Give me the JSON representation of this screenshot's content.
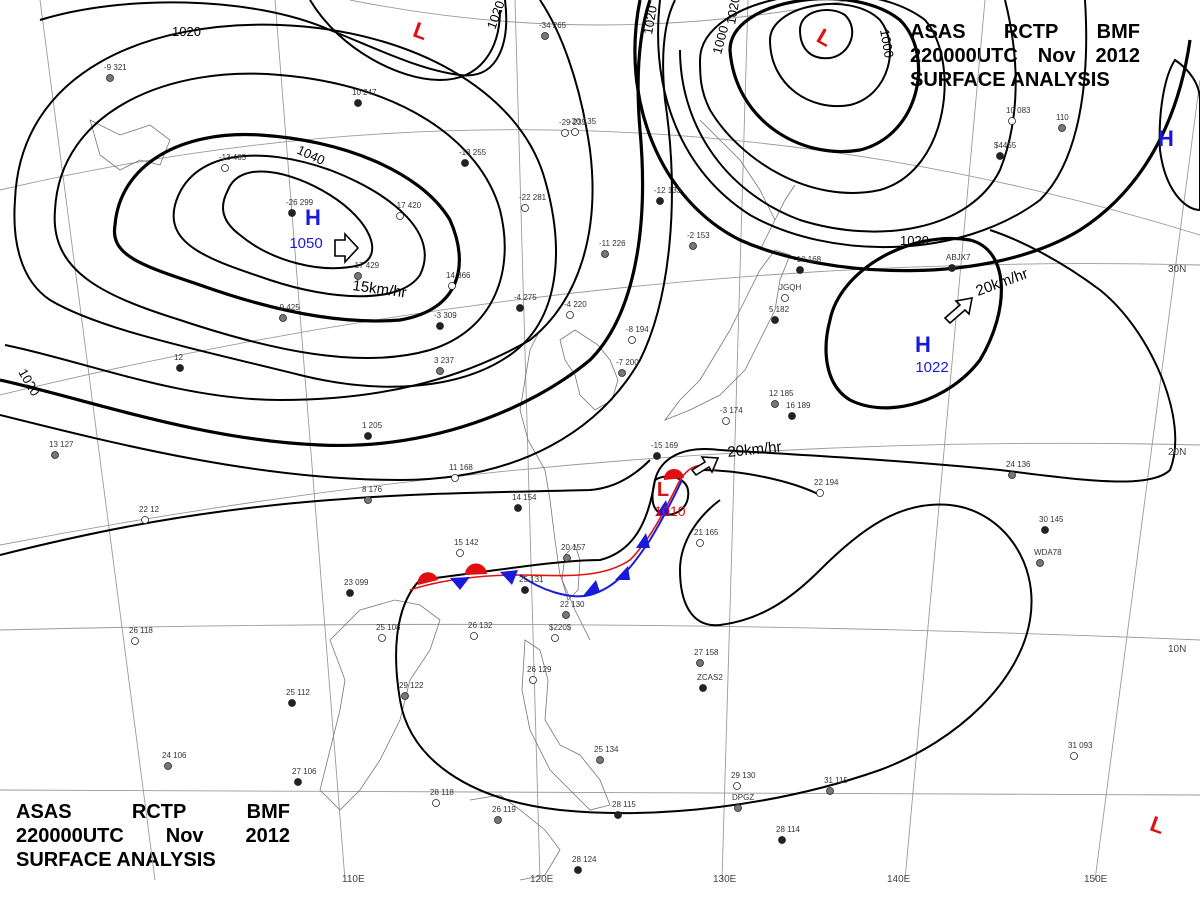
{
  "titles": {
    "top": {
      "l1": [
        "ASAS",
        "RCTP",
        "BMF"
      ],
      "l2": [
        "220000UTC",
        "Nov",
        "2012"
      ],
      "l3": "SURFACE ANALYSIS"
    },
    "bottom": {
      "l1": [
        "ASAS",
        "RCTP",
        "BMF"
      ],
      "l2": [
        "220000UTC",
        "Nov",
        "2012"
      ],
      "l3": "SURFACE ANALYSIS"
    }
  },
  "pressure_centers": [
    {
      "type": "H",
      "value": "1050",
      "color": "#1a1adb"
    },
    {
      "type": "H",
      "value": "1022",
      "color": "#1a1adb"
    },
    {
      "type": "H",
      "value": "",
      "color": "#1a1adb"
    },
    {
      "type": "L",
      "value": "",
      "color": "#e01010"
    },
    {
      "type": "L",
      "value": "",
      "color": "#e01010"
    },
    {
      "type": "L",
      "value": "",
      "color": "#e01010"
    },
    {
      "type": "L",
      "value": "1010",
      "color": "#e01010"
    }
  ],
  "motion_vectors": [
    "15km/hr",
    "20km/hr",
    "20km/hr"
  ],
  "isobar_labels": [
    "1020",
    "1020",
    "1040",
    "1020",
    "1020",
    "1000",
    "1000",
    "1020",
    "1020"
  ],
  "longitude_labels": [
    "110E",
    "120E",
    "130E",
    "140E",
    "150E"
  ],
  "latitude_labels": [
    "30N",
    "20N",
    "10N"
  ],
  "stations": [
    "-26 299",
    "-17 420",
    "-17 429",
    "-13 255",
    "-22 281",
    "-11 226",
    "-4 275",
    "-4 220",
    "-9 425",
    "10 247",
    "-13 465",
    "-9 321",
    "-3 309",
    "14 366",
    "3 237",
    "1 205",
    "11 168",
    "8 176",
    "14 154",
    "15 142",
    "20 157",
    "25 131",
    "26 132",
    "22 130",
    "23 099",
    "25 108",
    "29 122",
    "25 112",
    "26 118",
    "24 106",
    "27 106",
    "28 118",
    "26 119",
    "28 124",
    "26 129",
    "25 134",
    "28 115",
    "29 130",
    "31 115",
    "28 114",
    "31 093",
    "27 158",
    "30 145",
    "22 194",
    "24 136",
    "16 189",
    "21 165",
    "12 185",
    "-12 133",
    "-20 135",
    "-2 153",
    "-10 168",
    "-8 194",
    "-7 200",
    "-15 169",
    "-3 174",
    "-34 265",
    "5 182",
    "10 083",
    "110",
    "ABJX7",
    "JGQH",
    "WDA78",
    "ZCAS2",
    "$220$",
    "DPGZ",
    "$4455",
    "22 12",
    "13 127",
    "12",
    "-29 235"
  ],
  "colors": {
    "front_blue": "#1a1adb",
    "front_red": "#e01010",
    "isobar": "#000000",
    "grid": "#9a9a9a"
  }
}
